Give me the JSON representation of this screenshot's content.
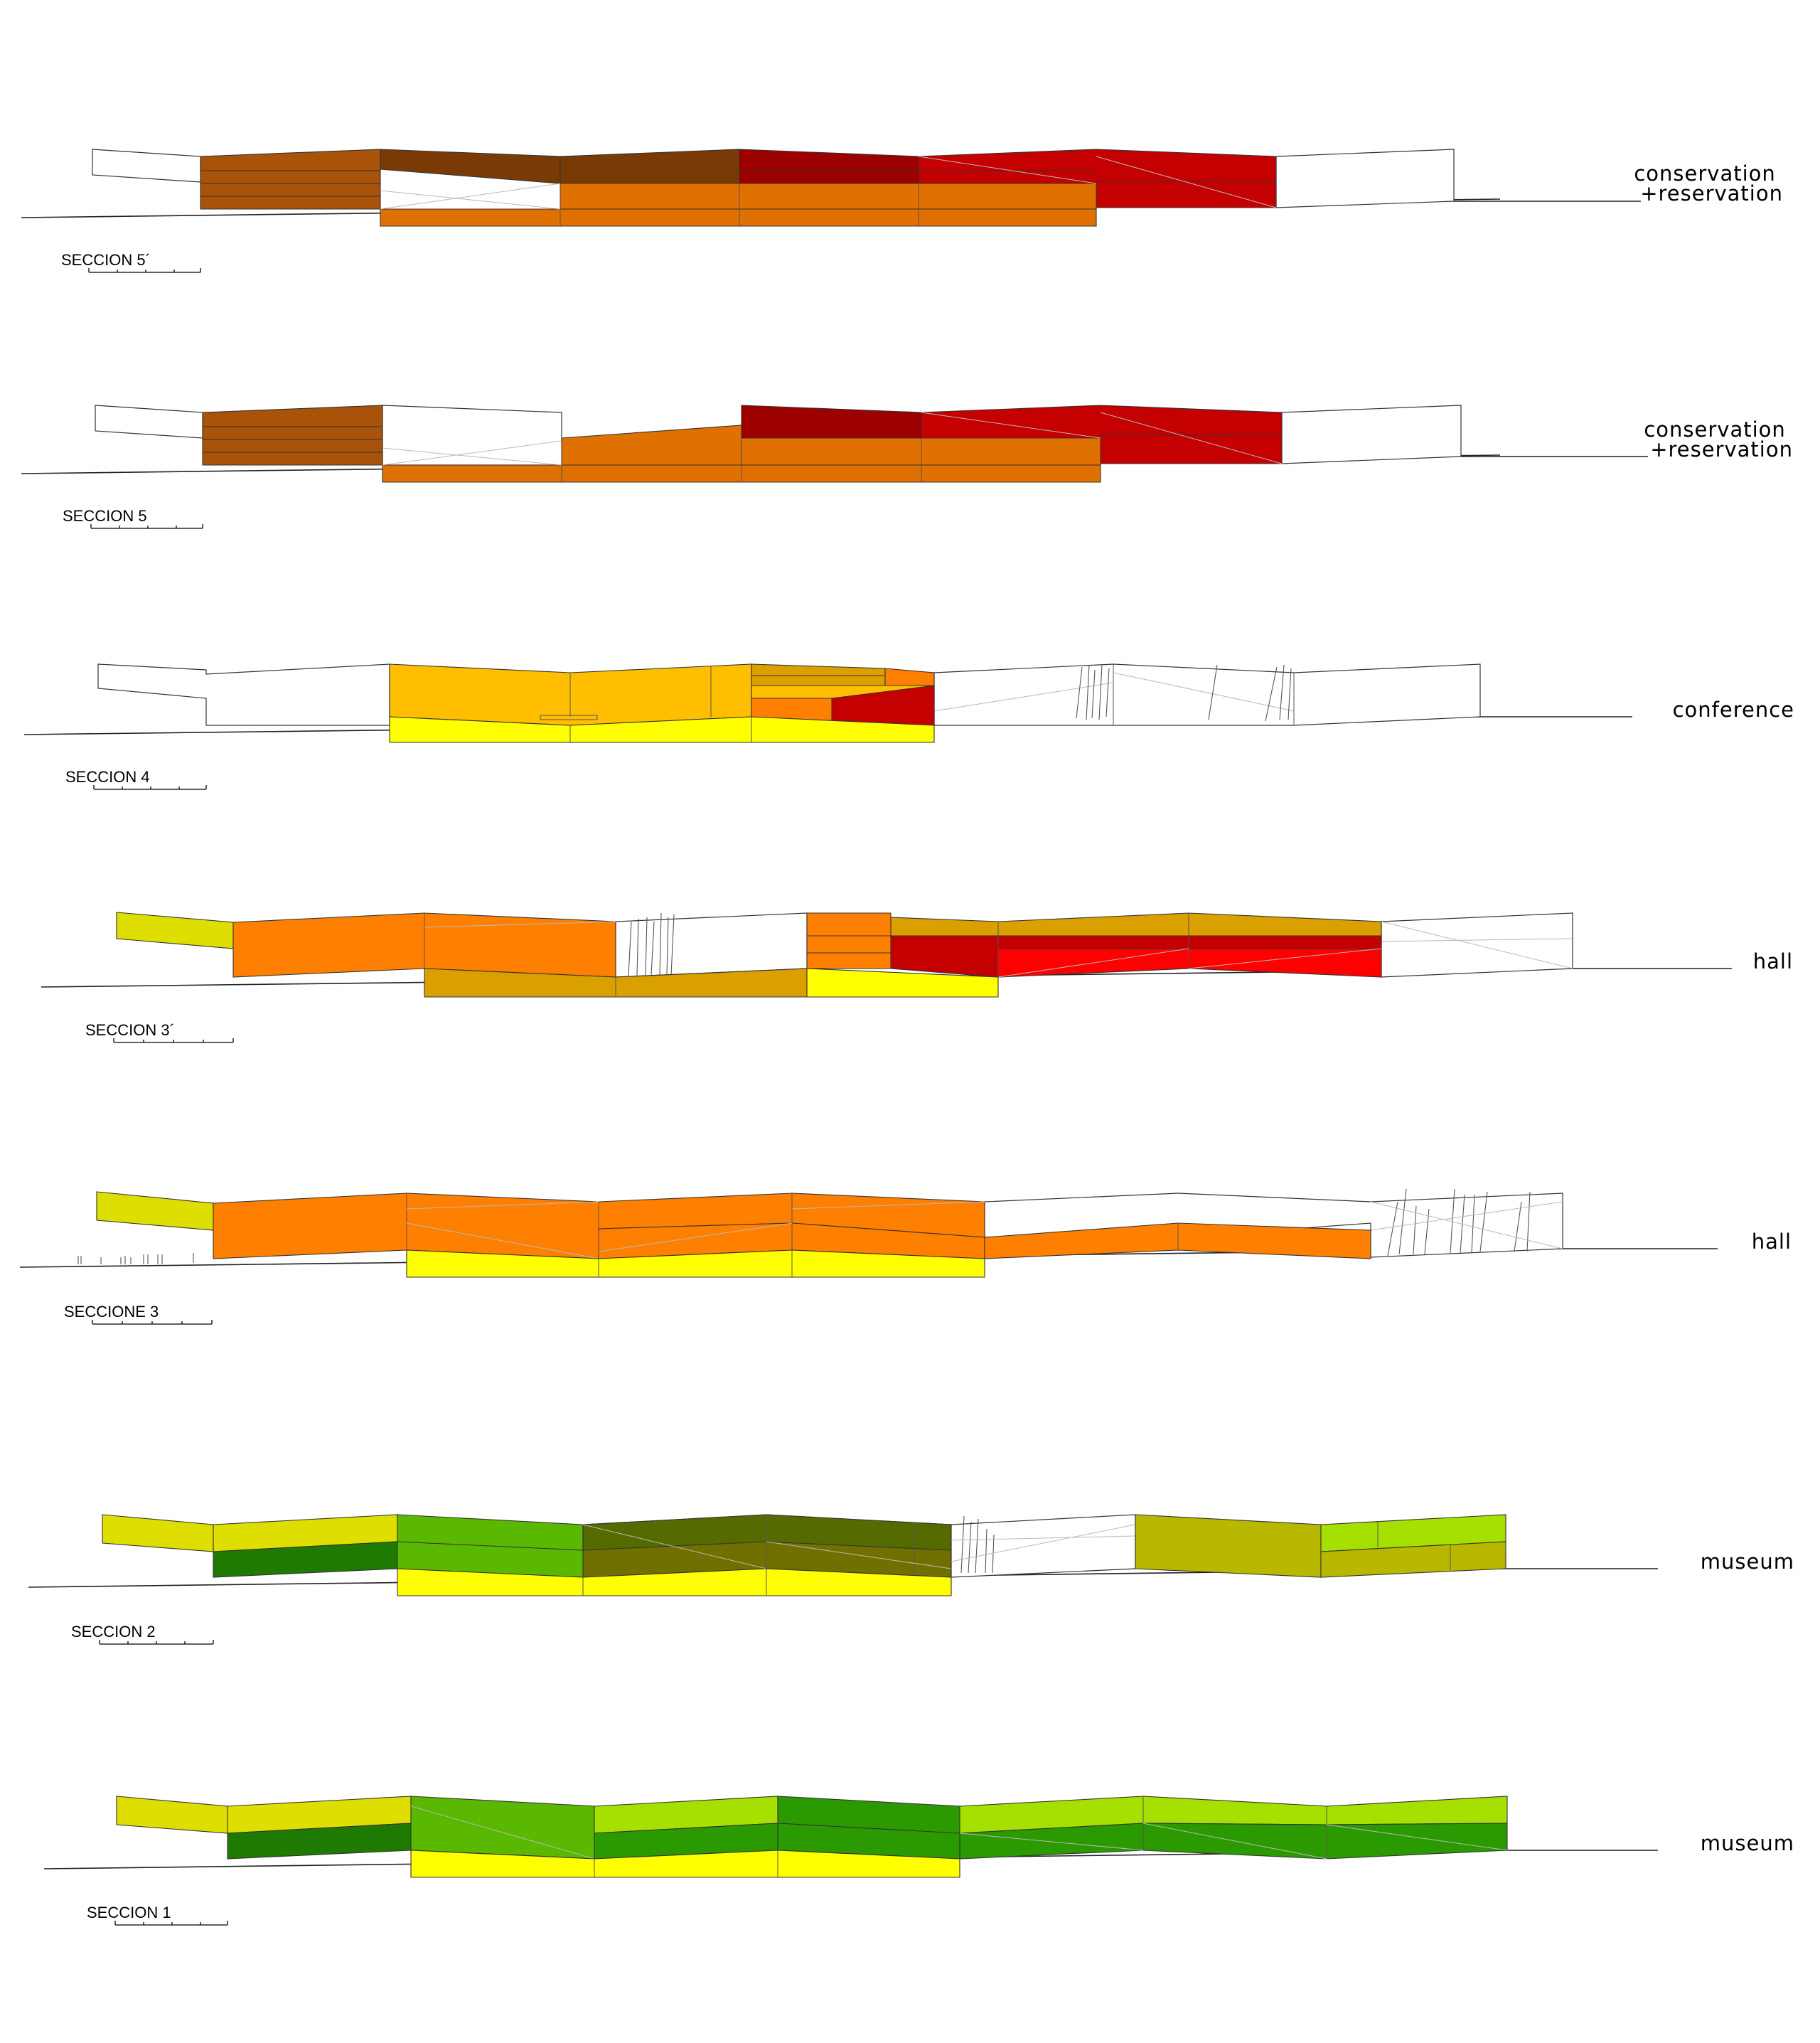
{
  "sections": [
    {
      "id": "5b",
      "title": "SECCION 5´",
      "use": "conservation\n+reservation"
    },
    {
      "id": "5",
      "title": "SECCION 5",
      "use": "conservation\n+reservation"
    },
    {
      "id": "4",
      "title": "SECCION 4",
      "use": "conference"
    },
    {
      "id": "3b",
      "title": "SECCION 3´",
      "use": "hall"
    },
    {
      "id": "3",
      "title": "SECCIONE 3",
      "use": "hall"
    },
    {
      "id": "2",
      "title": "SECCION 2",
      "use": "museum"
    },
    {
      "id": "1",
      "title": "SECCION 1",
      "use": "museum"
    }
  ],
  "colors": {
    "brown": "#a8520a",
    "dark_brown": "#7a3a06",
    "dark_red": "#9c0000",
    "red": "#c40000",
    "bright_red": "#ff0000",
    "orange": "#ff8000",
    "orange_brown": "#e07000",
    "amber": "#ffbf00",
    "ochre": "#d9a000",
    "yellow": "#ffff00",
    "yellow_green": "#dede00",
    "olive": "#b8b800",
    "dark_olive": "#707000",
    "lime": "#a6e000",
    "green": "#5ab800",
    "mid_green": "#2a9a00",
    "dark_green": "#1e7a00"
  }
}
